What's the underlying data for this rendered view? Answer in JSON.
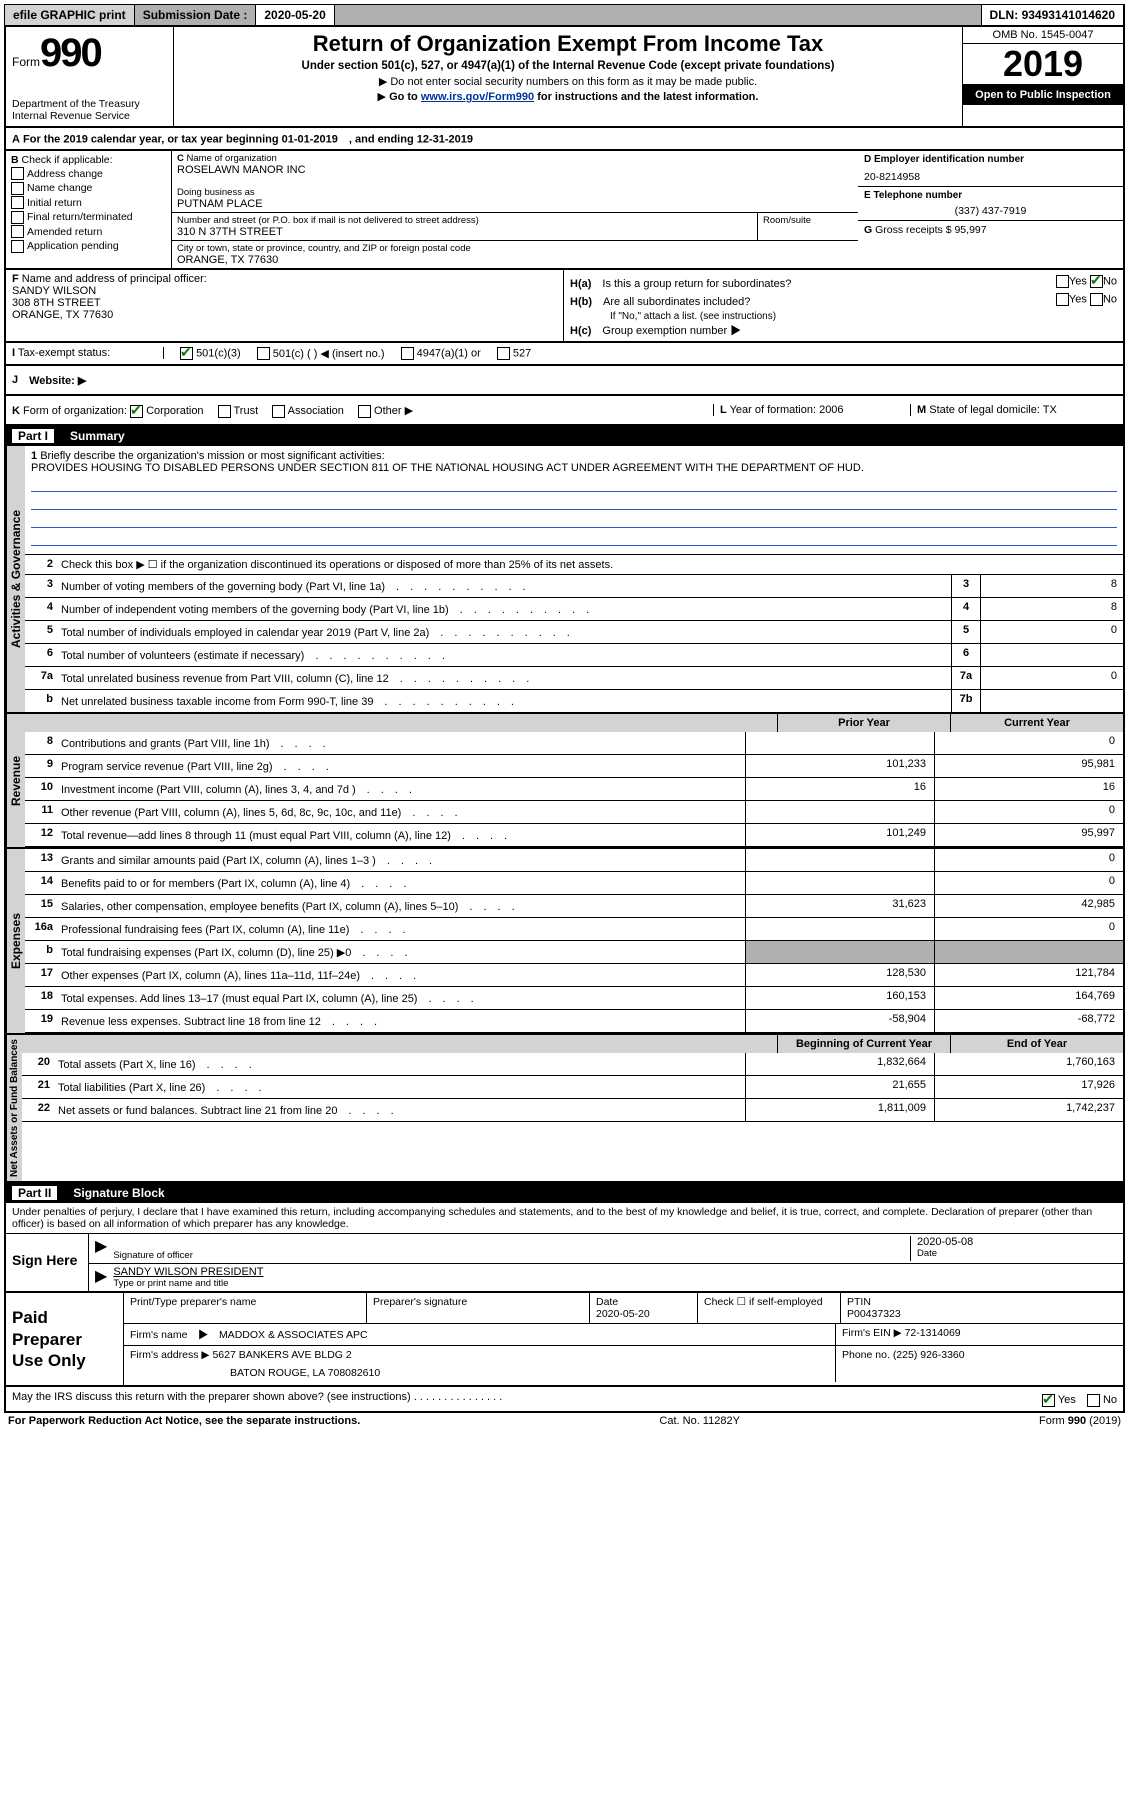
{
  "top_bar": {
    "efile": "efile GRAPHIC print",
    "submission_label": "Submission Date :",
    "submission_date": "2020-05-20",
    "dln_label": "DLN:",
    "dln": "93493141014620"
  },
  "header": {
    "form_prefix": "Form",
    "form_number": "990",
    "dept": "Department of the Treasury\nInternal Revenue Service",
    "title": "Return of Organization Exempt From Income Tax",
    "sub1": "Under section 501(c), 527, or 4947(a)(1) of the Internal Revenue Code (except private foundations)",
    "sub2": "Do not enter social security numbers on this form as it may be made public.",
    "sub3_pre": "Go to ",
    "sub3_link": "www.irs.gov/Form990",
    "sub3_post": " for instructions and the latest information.",
    "omb": "OMB No. 1545-0047",
    "year": "2019",
    "open": "Open to Public Inspection"
  },
  "section_a": "For the 2019 calendar year, or tax year beginning 01-01-2019　, and ending 12-31-2019",
  "box_b": {
    "label": "Check if applicable:",
    "items": [
      "Address change",
      "Name change",
      "Initial return",
      "Final return/terminated",
      "Amended return",
      "Application pending"
    ]
  },
  "box_c": {
    "name_label": "Name of organization",
    "name": "ROSELAWN MANOR INC",
    "dba_label": "Doing business as",
    "dba": "PUTNAM PLACE",
    "addr_label": "Number and street (or P.O. box if mail is not delivered to street address)",
    "addr": "310 N 37TH STREET",
    "room_label": "Room/suite",
    "city_label": "City or town, state or province, country, and ZIP or foreign postal code",
    "city": "ORANGE, TX  77630"
  },
  "box_d": {
    "label": "Employer identification number",
    "value": "20-8214958"
  },
  "box_e": {
    "label": "Telephone number",
    "value": "(337) 437-7919"
  },
  "box_g": {
    "label": "Gross receipts $",
    "value": "95,997"
  },
  "box_f": {
    "label": "Name and address of principal officer:",
    "name": "SANDY WILSON",
    "addr1": "308 8TH STREET",
    "addr2": "ORANGE, TX  77630"
  },
  "box_h": {
    "ha": "Is this a group return for subordinates?",
    "ha_yes": "Yes",
    "ha_no": "No",
    "hb": "Are all subordinates included?",
    "hb_note": "If \"No,\" attach a list. (see instructions)",
    "hc": "Group exemption number ▶"
  },
  "tax_status": {
    "label": "Tax-exempt status:",
    "o1": "501(c)(3)",
    "o2": "501(c) (  ) ◀ (insert no.)",
    "o3": "4947(a)(1) or",
    "o4": "527"
  },
  "website": {
    "label": "Website: ▶"
  },
  "row_k": {
    "k": "Form of organization:",
    "opts": [
      "Corporation",
      "Trust",
      "Association",
      "Other ▶"
    ],
    "l": "Year of formation: 2006",
    "m": "State of legal domicile: TX"
  },
  "part1": {
    "header": "Summary",
    "part": "Part I",
    "q1": "Briefly describe the organization's mission or most significant activities:",
    "mission": "PROVIDES HOUSING TO DISABLED PERSONS UNDER SECTION 811 OF THE NATIONAL HOUSING ACT UNDER AGREEMENT WITH THE DEPARTMENT OF HUD.",
    "q2": "Check this box ▶ ☐ if the organization discontinued its operations or disposed of more than 25% of its net assets.",
    "sidebar_activities": "Activities & Governance",
    "sidebar_revenue": "Revenue",
    "sidebar_expenses": "Expenses",
    "sidebar_net": "Net Assets or Fund Balances",
    "rows_gov": [
      {
        "n": "3",
        "t": "Number of voting members of the governing body (Part VI, line 1a)",
        "box": "3",
        "v": "8"
      },
      {
        "n": "4",
        "t": "Number of independent voting members of the governing body (Part VI, line 1b)",
        "box": "4",
        "v": "8"
      },
      {
        "n": "5",
        "t": "Total number of individuals employed in calendar year 2019 (Part V, line 2a)",
        "box": "5",
        "v": "0"
      },
      {
        "n": "6",
        "t": "Total number of volunteers (estimate if necessary)",
        "box": "6",
        "v": ""
      },
      {
        "n": "7a",
        "t": "Total unrelated business revenue from Part VIII, column (C), line 12",
        "box": "7a",
        "v": "0"
      },
      {
        "n": "b",
        "t": "Net unrelated business taxable income from Form 990-T, line 39",
        "box": "7b",
        "v": ""
      }
    ],
    "col_prior": "Prior Year",
    "col_current": "Current Year",
    "rows_rev": [
      {
        "n": "8",
        "t": "Contributions and grants (Part VIII, line 1h)",
        "p": "",
        "c": "0"
      },
      {
        "n": "9",
        "t": "Program service revenue (Part VIII, line 2g)",
        "p": "101,233",
        "c": "95,981"
      },
      {
        "n": "10",
        "t": "Investment income (Part VIII, column (A), lines 3, 4, and 7d )",
        "p": "16",
        "c": "16"
      },
      {
        "n": "11",
        "t": "Other revenue (Part VIII, column (A), lines 5, 6d, 8c, 9c, 10c, and 11e)",
        "p": "",
        "c": "0"
      },
      {
        "n": "12",
        "t": "Total revenue—add lines 8 through 11 (must equal Part VIII, column (A), line 12)",
        "p": "101,249",
        "c": "95,997"
      }
    ],
    "rows_exp": [
      {
        "n": "13",
        "t": "Grants and similar amounts paid (Part IX, column (A), lines 1–3 )",
        "p": "",
        "c": "0"
      },
      {
        "n": "14",
        "t": "Benefits paid to or for members (Part IX, column (A), line 4)",
        "p": "",
        "c": "0"
      },
      {
        "n": "15",
        "t": "Salaries, other compensation, employee benefits (Part IX, column (A), lines 5–10)",
        "p": "31,623",
        "c": "42,985"
      },
      {
        "n": "16a",
        "t": "Professional fundraising fees (Part IX, column (A), line 11e)",
        "p": "",
        "c": "0"
      },
      {
        "n": "b",
        "t": "Total fundraising expenses (Part IX, column (D), line 25) ▶0",
        "p": "SHADE",
        "c": "SHADE"
      },
      {
        "n": "17",
        "t": "Other expenses (Part IX, column (A), lines 11a–11d, 11f–24e)",
        "p": "128,530",
        "c": "121,784"
      },
      {
        "n": "18",
        "t": "Total expenses. Add lines 13–17 (must equal Part IX, column (A), line 25)",
        "p": "160,153",
        "c": "164,769"
      },
      {
        "n": "19",
        "t": "Revenue less expenses. Subtract line 18 from line 12",
        "p": "-58,904",
        "c": "-68,772"
      }
    ],
    "col_begin": "Beginning of Current Year",
    "col_end": "End of Year",
    "rows_net": [
      {
        "n": "20",
        "t": "Total assets (Part X, line 16)",
        "p": "1,832,664",
        "c": "1,760,163"
      },
      {
        "n": "21",
        "t": "Total liabilities (Part X, line 26)",
        "p": "21,655",
        "c": "17,926"
      },
      {
        "n": "22",
        "t": "Net assets or fund balances. Subtract line 21 from line 20",
        "p": "1,811,009",
        "c": "1,742,237"
      }
    ]
  },
  "part2": {
    "part": "Part II",
    "header": "Signature Block",
    "intro": "Under penalties of perjury, I declare that I have examined this return, including accompanying schedules and statements, and to the best of my knowledge and belief, it is true, correct, and complete. Declaration of preparer (other than officer) is based on all information of which preparer has any knowledge.",
    "sign_here": "Sign Here",
    "sig_of_officer": "Signature of officer",
    "sig_date": "2020-05-08",
    "date_lbl": "Date",
    "officer_name": "SANDY WILSON PRESIDENT",
    "type_name": "Type or print name and title",
    "paid": "Paid Preparer Use Only",
    "print_name_lbl": "Print/Type preparer's name",
    "prep_sig_lbl": "Preparer's signature",
    "prep_date_lbl": "Date",
    "prep_date": "2020-05-20",
    "check_self": "Check ☐ if self-employed",
    "ptin_lbl": "PTIN",
    "ptin": "P00437323",
    "firm_name_lbl": "Firm's name　▶",
    "firm_name": "MADDOX & ASSOCIATES APC",
    "firm_ein_lbl": "Firm's EIN ▶",
    "firm_ein": "72-1314069",
    "firm_addr_lbl": "Firm's address ▶",
    "firm_addr1": "5627 BANKERS AVE BLDG 2",
    "firm_addr2": "BATON ROUGE, LA  708082610",
    "phone_lbl": "Phone no.",
    "phone": "(225) 926-3360",
    "discuss": "May the IRS discuss this return with the preparer shown above? (see instructions)",
    "discuss_yes": "Yes",
    "discuss_no": "No"
  },
  "footer": {
    "left": "For Paperwork Reduction Act Notice, see the separate instructions.",
    "mid": "Cat. No. 11282Y",
    "right": "Form 990 (2019)"
  }
}
